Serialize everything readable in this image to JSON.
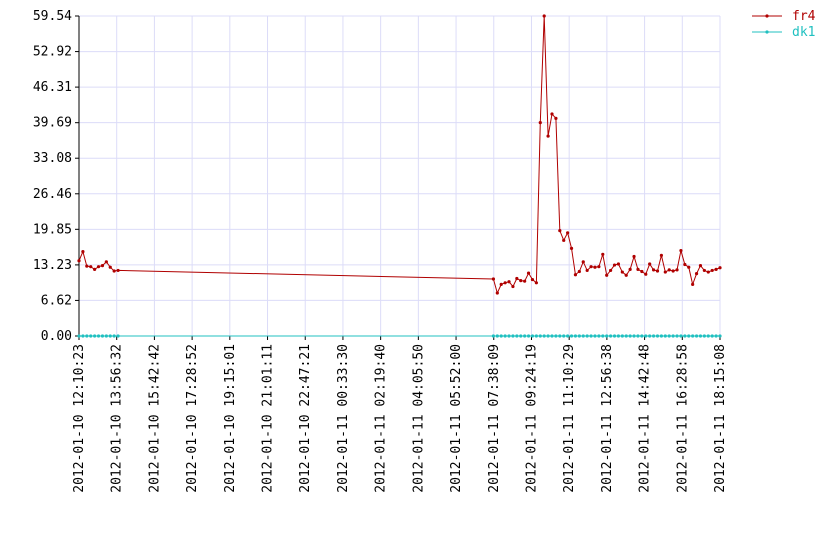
{
  "chart_data": {
    "type": "line",
    "x": [
      "2012-01-10 12:10:23",
      "2012-01-10 12:21:23",
      "2012-01-10 12:32:23",
      "2012-01-10 12:43:23",
      "2012-01-10 12:54:23",
      "2012-01-10 13:05:23",
      "2012-01-10 13:16:23",
      "2012-01-10 13:27:23",
      "2012-01-10 13:38:23",
      "2012-01-10 13:49:23",
      "2012-01-10 14:00:23",
      "2012-01-11 07:37:08",
      "2012-01-11 07:48:08",
      "2012-01-11 07:59:08",
      "2012-01-11 08:10:08",
      "2012-01-11 08:21:08",
      "2012-01-11 08:32:08",
      "2012-01-11 08:43:08",
      "2012-01-11 08:54:08",
      "2012-01-11 09:05:08",
      "2012-01-11 09:16:08",
      "2012-01-11 09:27:08",
      "2012-01-11 09:38:08",
      "2012-01-11 09:49:08",
      "2012-01-11 10:00:08",
      "2012-01-11 10:11:08",
      "2012-01-11 10:22:08",
      "2012-01-11 10:33:08",
      "2012-01-11 10:44:08",
      "2012-01-11 10:55:08",
      "2012-01-11 11:06:08",
      "2012-01-11 11:17:08",
      "2012-01-11 11:28:08",
      "2012-01-11 11:39:08",
      "2012-01-11 11:50:08",
      "2012-01-11 12:01:08",
      "2012-01-11 12:12:08",
      "2012-01-11 12:23:08",
      "2012-01-11 12:34:08",
      "2012-01-11 12:45:08",
      "2012-01-11 12:56:08",
      "2012-01-11 13:07:08",
      "2012-01-11 13:18:08",
      "2012-01-11 13:29:08",
      "2012-01-11 13:40:08",
      "2012-01-11 13:51:08",
      "2012-01-11 14:02:08",
      "2012-01-11 14:13:08",
      "2012-01-11 14:24:08",
      "2012-01-11 14:35:08",
      "2012-01-11 14:46:08",
      "2012-01-11 14:57:08",
      "2012-01-11 15:08:08",
      "2012-01-11 15:19:08",
      "2012-01-11 15:30:08",
      "2012-01-11 15:41:08",
      "2012-01-11 15:52:08",
      "2012-01-11 16:03:08",
      "2012-01-11 16:14:08",
      "2012-01-11 16:25:08",
      "2012-01-11 16:36:08",
      "2012-01-11 16:47:08",
      "2012-01-11 16:58:08",
      "2012-01-11 17:09:08",
      "2012-01-11 17:20:08",
      "2012-01-11 17:31:08",
      "2012-01-11 17:42:08",
      "2012-01-11 17:53:08",
      "2012-01-11 18:04:08",
      "2012-01-11 18:15:08"
    ],
    "series": [
      {
        "name": "fr4",
        "color": "#b00000",
        "values": [
          14.0,
          15.7,
          13.0,
          12.9,
          12.4,
          12.9,
          13.1,
          13.8,
          12.8,
          12.1,
          12.2,
          10.6,
          8.0,
          9.6,
          9.9,
          10.1,
          9.2,
          10.7,
          10.3,
          10.2,
          11.7,
          10.5,
          9.9,
          39.7,
          59.54,
          37.2,
          41.3,
          40.5,
          19.6,
          17.8,
          19.2,
          16.3,
          11.4,
          12.0,
          13.8,
          12.2,
          12.9,
          12.8,
          12.9,
          15.2,
          11.3,
          12.2,
          13.2,
          13.4,
          11.9,
          11.3,
          12.4,
          14.8,
          12.4,
          12.0,
          11.5,
          13.4,
          12.3,
          12.1,
          15.0,
          11.9,
          12.3,
          12.1,
          12.3,
          15.9,
          13.3,
          12.8,
          9.6,
          11.6,
          13.1,
          12.2,
          11.9,
          12.2,
          12.4,
          12.7
        ]
      },
      {
        "name": "dk1",
        "color": "#20c0c0",
        "values": [
          0,
          0,
          0,
          0,
          0,
          0,
          0,
          0,
          0,
          0,
          0,
          0,
          0,
          0,
          0,
          0,
          0,
          0,
          0,
          0,
          0,
          0,
          0,
          0,
          0,
          0,
          0,
          0,
          0,
          0,
          0,
          0,
          0,
          0,
          0,
          0,
          0,
          0,
          0,
          0,
          0,
          0,
          0,
          0,
          0,
          0,
          0,
          0,
          0,
          0,
          0,
          0,
          0,
          0,
          0,
          0,
          0,
          0,
          0,
          0,
          0,
          0,
          0,
          0,
          0,
          0,
          0,
          0,
          0,
          0
        ]
      }
    ],
    "xlim": [
      "2012-01-10 12:10:23",
      "2012-01-11 18:15:08"
    ],
    "xticks": [
      "2012-01-10 12:10:23",
      "2012-01-10 13:56:32",
      "2012-01-10 15:42:42",
      "2012-01-10 17:28:52",
      "2012-01-10 19:15:01",
      "2012-01-10 21:01:11",
      "2012-01-10 22:47:21",
      "2012-01-11 00:33:30",
      "2012-01-11 02:19:40",
      "2012-01-11 04:05:50",
      "2012-01-11 05:52:00",
      "2012-01-11 07:38:09",
      "2012-01-11 09:24:19",
      "2012-01-11 11:10:29",
      "2012-01-11 12:56:38",
      "2012-01-11 14:42:48",
      "2012-01-11 16:28:58",
      "2012-01-11 18:15:08"
    ],
    "ylim": [
      0,
      59.54
    ],
    "yticks": [
      {
        "value": 0,
        "label": "0.00"
      },
      6.62,
      13.23,
      19.85,
      26.46,
      33.08,
      39.69,
      46.31,
      52.92,
      59.54
    ],
    "grid": true,
    "legend": "top-right"
  }
}
